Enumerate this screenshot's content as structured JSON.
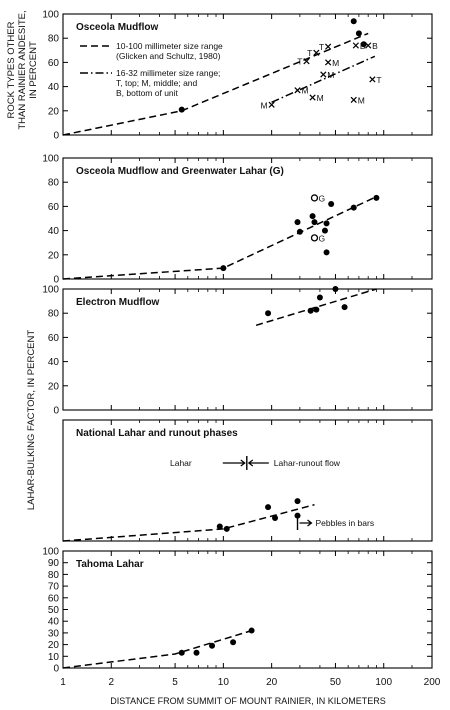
{
  "x_axis": {
    "label": "DISTANCE FROM SUMMIT OF MOUNT RAINIER, IN KILOMETERS",
    "scale": "log",
    "range": [
      1,
      200
    ],
    "ticks": [
      1,
      2,
      5,
      10,
      20,
      50,
      100,
      200
    ],
    "tick_labels": [
      "1",
      "2",
      "5",
      "10",
      "20",
      "50",
      "100",
      "200"
    ]
  },
  "y_label_top": [
    "ROCK TYPES OTHER",
    "THAN RAINIER ANDESITE,",
    "IN PERCENT"
  ],
  "y_label_shared": "LAHAR-BULKING FACTOR, IN PERCENT",
  "chart_data": [
    {
      "type": "scatter",
      "title": "Osceola Mudflow",
      "xscale": "log",
      "xlim": [
        1,
        200
      ],
      "ylim": [
        0,
        100
      ],
      "yticks": [
        0,
        20,
        40,
        60,
        80,
        100
      ],
      "legend": {
        "placement": "top-left",
        "entries": [
          {
            "line_style": "dashed",
            "lines": [
              "10-100 millimeter size range",
              "(Glicken and Schultz, 1980)"
            ]
          },
          {
            "line_style": "dash-dot",
            "lines": [
              "16-32 millimeter size range;",
              "T, top; M, middle; and",
              "B, bottom of unit"
            ]
          }
        ]
      },
      "series": [
        {
          "marker": "dot",
          "points": [
            [
              5.5,
              21
            ],
            [
              65,
              94
            ],
            [
              70,
              84
            ],
            [
              75,
              75
            ]
          ]
        },
        {
          "marker": "x",
          "labels": [
            "T",
            "T",
            "T",
            "B",
            "B",
            "M",
            "M",
            "M",
            "M",
            "M",
            "T",
            "M"
          ],
          "points": [
            [
              33,
              61
            ],
            [
              38,
              68
            ],
            [
              45,
              73
            ],
            [
              67,
              74
            ],
            [
              80,
              74
            ],
            [
              20,
              25
            ],
            [
              29,
              37
            ],
            [
              36,
              31
            ],
            [
              42,
              50
            ],
            [
              45,
              60
            ],
            [
              85,
              46
            ],
            [
              65,
              29
            ]
          ]
        },
        {
          "line_style": "dashed",
          "points": [
            [
              1,
              0
            ],
            [
              5.5,
              20
            ],
            [
              80,
              84
            ]
          ]
        },
        {
          "line_style": "dash-dot",
          "points": [
            [
              20,
              27
            ],
            [
              88,
              65
            ]
          ]
        }
      ]
    },
    {
      "type": "scatter",
      "title": "Osceola Mudflow and Greenwater Lahar (G)",
      "xscale": "log",
      "xlim": [
        1,
        200
      ],
      "ylim": [
        0,
        100
      ],
      "yticks": [
        0,
        20,
        40,
        60,
        80,
        100
      ],
      "series": [
        {
          "marker": "dot",
          "points": [
            [
              10,
              9
            ],
            [
              29,
              47
            ],
            [
              30,
              39
            ],
            [
              36,
              52
            ],
            [
              37,
              47
            ],
            [
              43,
              40
            ],
            [
              44,
              22
            ],
            [
              44,
              46
            ],
            [
              47,
              62
            ],
            [
              65,
              59
            ],
            [
              90,
              67
            ]
          ]
        },
        {
          "marker": "open-circle",
          "labels": [
            "G",
            "G"
          ],
          "points": [
            [
              37,
              67
            ],
            [
              37,
              34
            ]
          ]
        },
        {
          "line_style": "dashed",
          "points": [
            [
              1,
              0
            ],
            [
              10,
              9
            ],
            [
              90,
              68
            ]
          ]
        }
      ]
    },
    {
      "type": "scatter",
      "title": "Electron Mudflow",
      "xscale": "log",
      "xlim": [
        1,
        200
      ],
      "ylim": [
        0,
        100
      ],
      "yticks": [
        0,
        20,
        40,
        60,
        80,
        100
      ],
      "series": [
        {
          "marker": "dot",
          "points": [
            [
              19,
              80
            ],
            [
              35,
              82
            ],
            [
              38,
              83
            ],
            [
              40,
              93
            ],
            [
              50,
              100
            ],
            [
              57,
              85
            ]
          ]
        },
        {
          "line_style": "dashed",
          "points": [
            [
              16,
              70
            ],
            [
              90,
              100
            ]
          ]
        }
      ]
    },
    {
      "type": "scatter",
      "title": "National Lahar and runout phases",
      "xscale": "log",
      "xlim": [
        1,
        200
      ],
      "ylim": [
        0,
        100
      ],
      "annotations": [
        "Lahar",
        "Lahar-runout flow",
        "Pebbles in bars"
      ],
      "series": [
        {
          "marker": "dot",
          "points": [
            [
              9.5,
              12
            ],
            [
              10.5,
              10
            ],
            [
              19,
              28
            ],
            [
              21,
              19
            ],
            [
              29,
              33
            ],
            [
              29,
              21
            ]
          ]
        },
        {
          "line_style": "dashed",
          "points": [
            [
              1,
              0
            ],
            [
              10,
              10
            ],
            [
              37,
              30
            ]
          ]
        }
      ]
    },
    {
      "type": "scatter",
      "title": "Tahoma Lahar",
      "xscale": "log",
      "xlim": [
        1,
        200
      ],
      "ylim": [
        0,
        100
      ],
      "yticks": [
        0,
        10,
        20,
        30,
        40,
        50,
        60,
        70,
        80,
        90,
        100
      ],
      "series": [
        {
          "marker": "dot",
          "points": [
            [
              5.5,
              13
            ],
            [
              6.8,
              13
            ],
            [
              8.5,
              19
            ],
            [
              11.5,
              22
            ],
            [
              15,
              32
            ]
          ]
        },
        {
          "line_style": "dashed",
          "points": [
            [
              1,
              0
            ],
            [
              5,
              12
            ],
            [
              15,
              32
            ]
          ]
        }
      ]
    }
  ]
}
